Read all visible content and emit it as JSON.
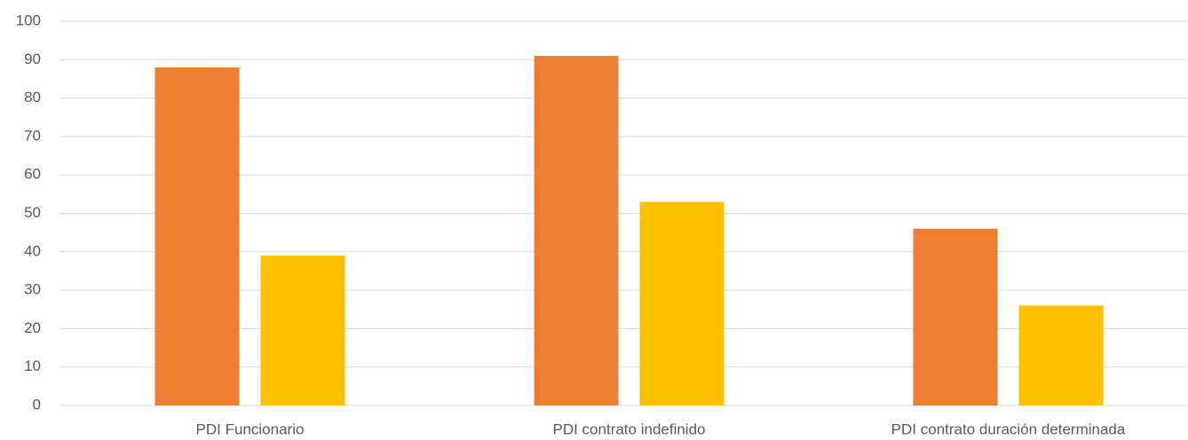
{
  "chart_data": {
    "type": "bar",
    "categories": [
      "PDI Funcionario",
      "PDI contrato indefinido",
      "PDI contrato duración determinada"
    ],
    "series": [
      {
        "color": "#ED7D31",
        "values": [
          88,
          91,
          46
        ]
      },
      {
        "color": "#FFC000",
        "values": [
          39,
          53,
          26
        ]
      }
    ],
    "ylim": [
      0,
      100
    ],
    "yticks": [
      0,
      10,
      20,
      30,
      40,
      50,
      60,
      70,
      80,
      90,
      100
    ],
    "grid": true
  }
}
